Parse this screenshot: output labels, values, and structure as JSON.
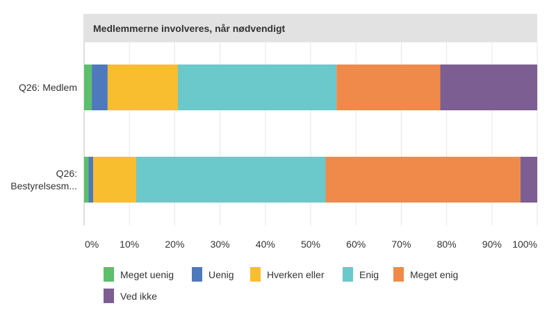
{
  "chart_data": {
    "type": "bar",
    "orientation": "horizontal",
    "stacked": "percent",
    "title": "Medlemmerne involveres, når nødvendigt",
    "categories": [
      "Q26: Medlem",
      "Q26: Bestyrelsesm..."
    ],
    "category_lines": [
      [
        "Q26: Medlem"
      ],
      [
        "Q26:",
        "Bestyrelsesm..."
      ]
    ],
    "series": [
      {
        "name": "Meget uenig",
        "color": "#5cbf6b",
        "values": [
          1.7,
          1.0
        ]
      },
      {
        "name": "Uenig",
        "color": "#4e79bd",
        "values": [
          3.5,
          1.0
        ]
      },
      {
        "name": "Hverken eller",
        "color": "#f8be2f",
        "values": [
          15.5,
          9.5
        ]
      },
      {
        "name": "Enig",
        "color": "#6bc8cb",
        "values": [
          35.0,
          41.8
        ]
      },
      {
        "name": "Meget enig",
        "color": "#f08a4b",
        "values": [
          22.9,
          43.0
        ]
      },
      {
        "name": "Ved ikke",
        "color": "#7d5e92",
        "values": [
          21.4,
          3.7
        ]
      }
    ],
    "x_ticks": [
      "0%",
      "10%",
      "20%",
      "30%",
      "40%",
      "50%",
      "60%",
      "70%",
      "80%",
      "90%",
      "100%"
    ],
    "xlim": [
      0,
      100
    ],
    "grid": true,
    "legend_position": "bottom"
  }
}
